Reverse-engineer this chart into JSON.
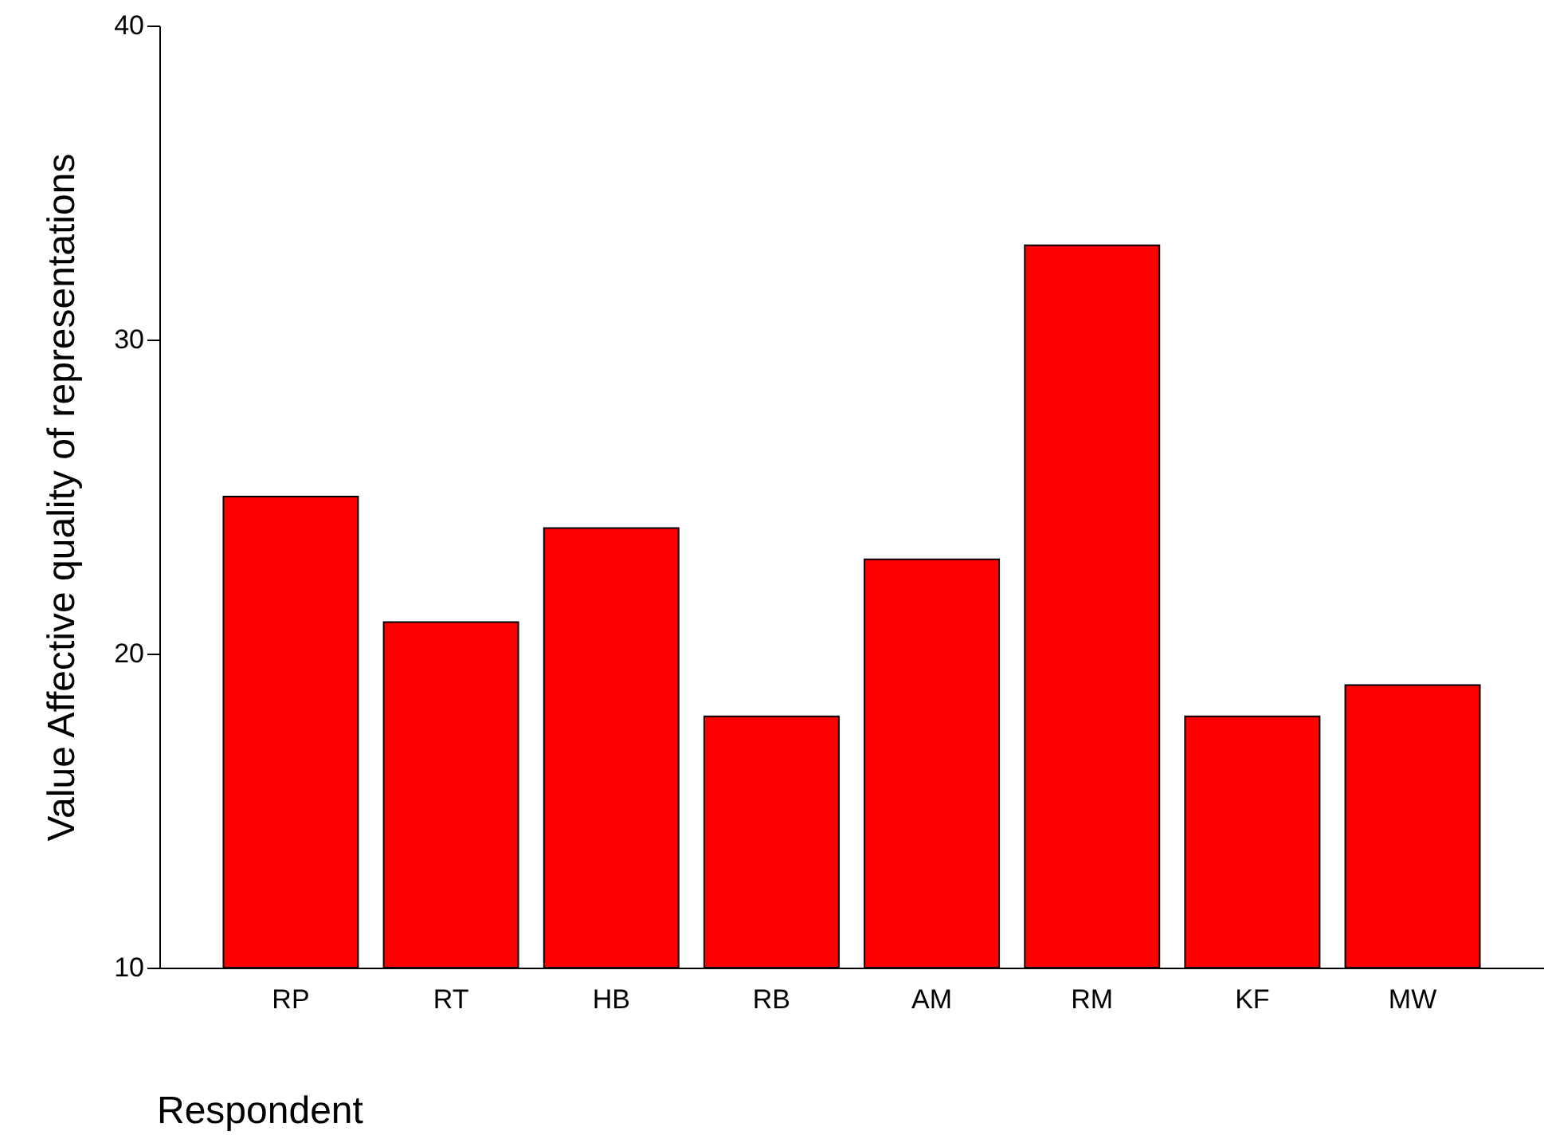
{
  "chart_data": {
    "type": "bar",
    "xlabel": "Respondent",
    "ylabel": "Value Affective quality of representations",
    "categories": [
      "RP",
      "RT",
      "HB",
      "RB",
      "AM",
      "RM",
      "KF",
      "MW"
    ],
    "values": [
      25,
      21,
      24,
      18,
      23,
      33,
      18,
      19
    ],
    "color": "#ff0000",
    "ylim": [
      10,
      40
    ],
    "yticks": [
      10,
      20,
      30,
      40
    ],
    "grid": false
  }
}
